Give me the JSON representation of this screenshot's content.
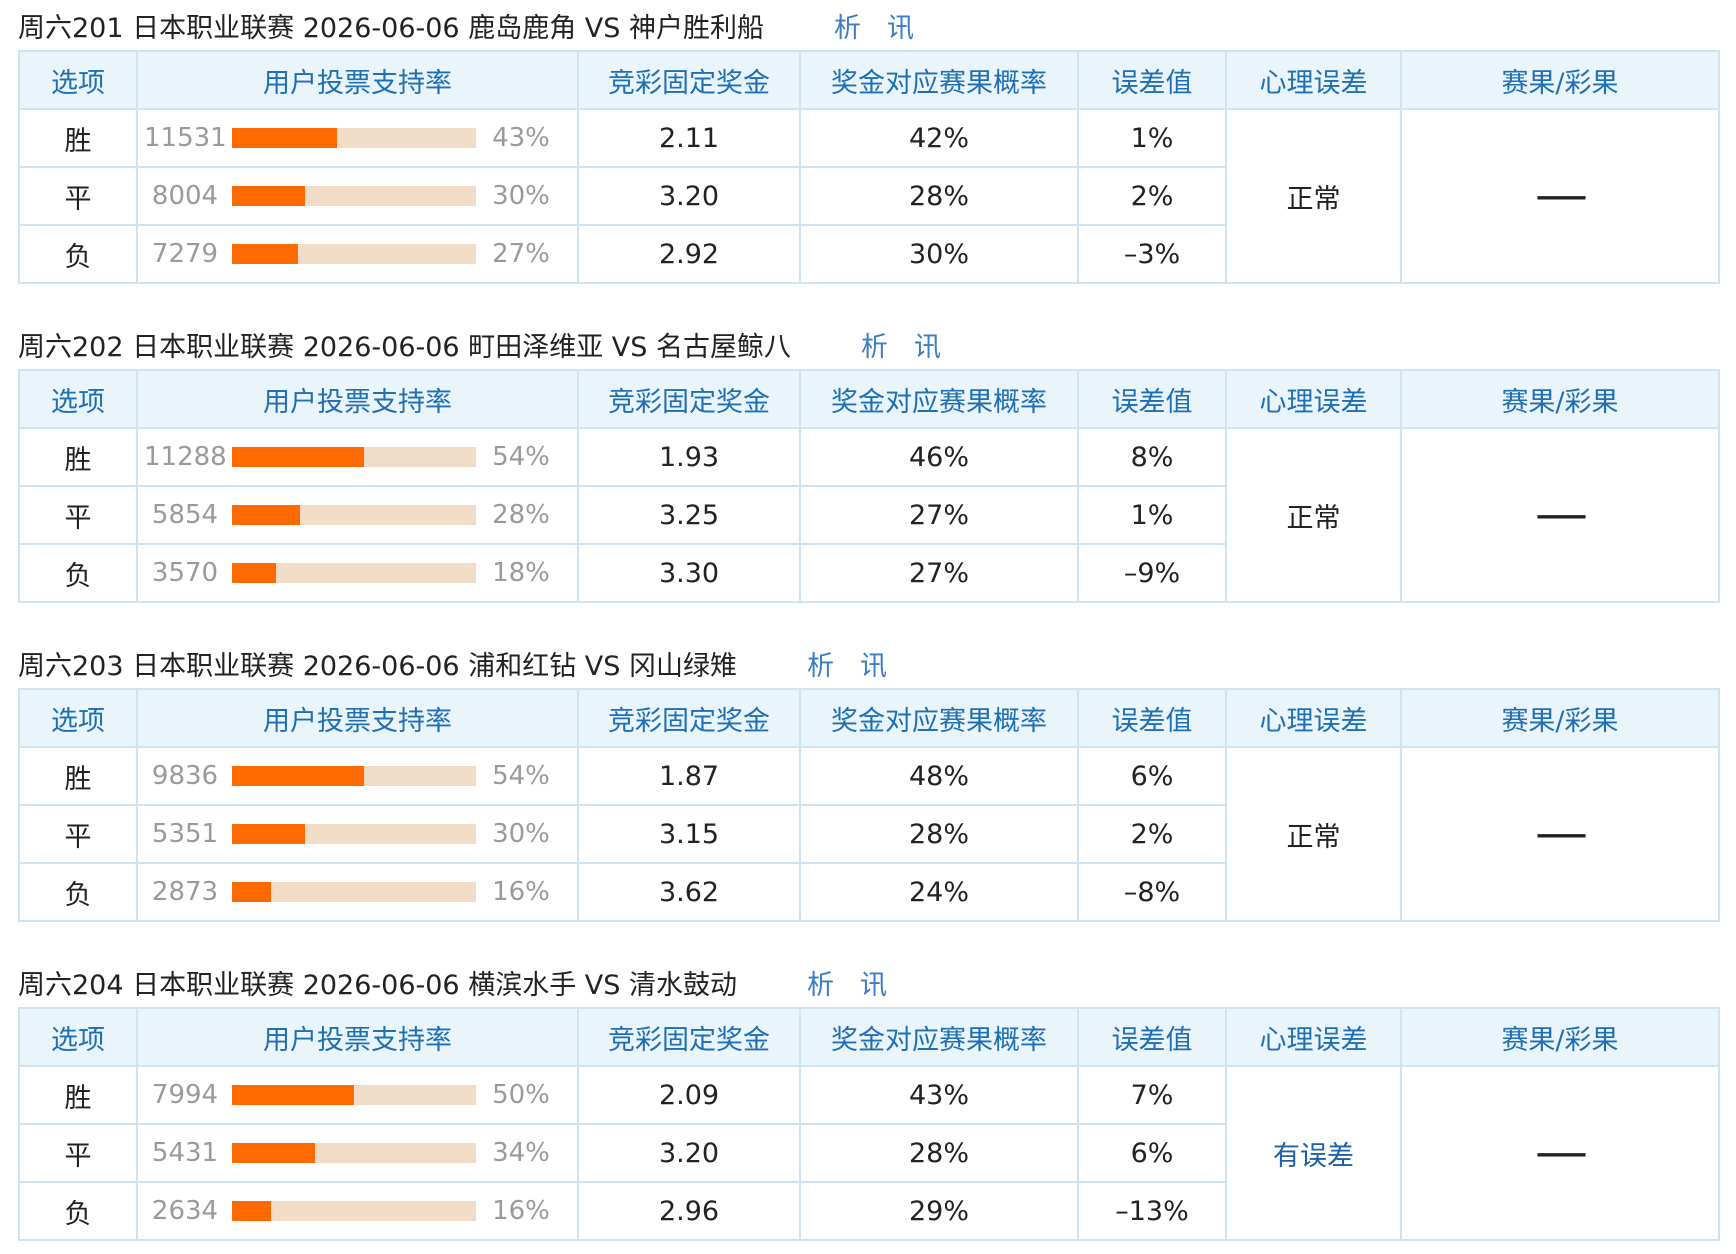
{
  "headers": {
    "option": "选项",
    "support": "用户投票支持率",
    "fixed_odds": "竞彩固定奖金",
    "prob": "奖金对应赛果概率",
    "error": "误差值",
    "psych": "心理误差",
    "result": "赛果/彩果"
  },
  "links": {
    "analysis": "析",
    "news": "讯"
  },
  "colors": {
    "bar_fill": "#ff6a00",
    "bar_track": "#f1dcc8",
    "header_text": "#1f6fb4",
    "link": "#3a7cc6"
  },
  "matches": [
    {
      "title": "周六201 日本职业联赛 2026-06-06 鹿岛鹿角 VS 神户胜利船",
      "psych": "正常",
      "psych_warn": false,
      "result": "——",
      "rows": [
        {
          "option": "胜",
          "votes": "11531",
          "pct": "43%",
          "pct_value": 43,
          "odds": "2.11",
          "prob": "42%",
          "error": "1%",
          "error_warn": false
        },
        {
          "option": "平",
          "votes": "8004",
          "pct": "30%",
          "pct_value": 30,
          "odds": "3.20",
          "prob": "28%",
          "error": "2%",
          "error_warn": false
        },
        {
          "option": "负",
          "votes": "7279",
          "pct": "27%",
          "pct_value": 27,
          "odds": "2.92",
          "prob": "30%",
          "error": "–3%",
          "error_warn": false
        }
      ]
    },
    {
      "title": "周六202 日本职业联赛 2026-06-06 町田泽维亚 VS 名古屋鲸八",
      "psych": "正常",
      "psych_warn": false,
      "result": "——",
      "rows": [
        {
          "option": "胜",
          "votes": "11288",
          "pct": "54%",
          "pct_value": 54,
          "odds": "1.93",
          "prob": "46%",
          "error": "8%",
          "error_warn": false
        },
        {
          "option": "平",
          "votes": "5854",
          "pct": "28%",
          "pct_value": 28,
          "odds": "3.25",
          "prob": "27%",
          "error": "1%",
          "error_warn": false
        },
        {
          "option": "负",
          "votes": "3570",
          "pct": "18%",
          "pct_value": 18,
          "odds": "3.30",
          "prob": "27%",
          "error": "–9%",
          "error_warn": false
        }
      ]
    },
    {
      "title": "周六203 日本职业联赛 2026-06-06 浦和红钻 VS 冈山绿雉",
      "psych": "正常",
      "psych_warn": false,
      "result": "——",
      "rows": [
        {
          "option": "胜",
          "votes": "9836",
          "pct": "54%",
          "pct_value": 54,
          "odds": "1.87",
          "prob": "48%",
          "error": "6%",
          "error_warn": false
        },
        {
          "option": "平",
          "votes": "5351",
          "pct": "30%",
          "pct_value": 30,
          "odds": "3.15",
          "prob": "28%",
          "error": "2%",
          "error_warn": false
        },
        {
          "option": "负",
          "votes": "2873",
          "pct": "16%",
          "pct_value": 16,
          "odds": "3.62",
          "prob": "24%",
          "error": "–8%",
          "error_warn": false
        }
      ]
    },
    {
      "title": "周六204 日本职业联赛 2026-06-06 横滨水手 VS 清水鼓动",
      "psych": "有误差",
      "psych_warn": true,
      "result": "——",
      "rows": [
        {
          "option": "胜",
          "votes": "7994",
          "pct": "50%",
          "pct_value": 50,
          "odds": "2.09",
          "prob": "43%",
          "error": "7%",
          "error_warn": false
        },
        {
          "option": "平",
          "votes": "5431",
          "pct": "34%",
          "pct_value": 34,
          "odds": "3.20",
          "prob": "28%",
          "error": "6%",
          "error_warn": false
        },
        {
          "option": "负",
          "votes": "2634",
          "pct": "16%",
          "pct_value": 16,
          "odds": "2.96",
          "prob": "29%",
          "error": "–13%",
          "error_warn": true
        }
      ]
    }
  ]
}
